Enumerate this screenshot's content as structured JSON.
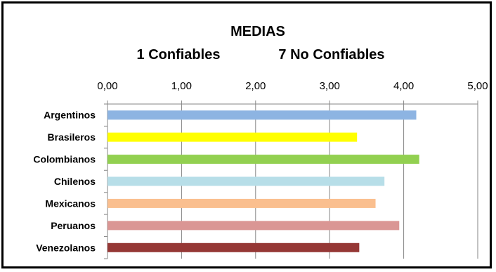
{
  "chart_data": {
    "type": "bar",
    "orientation": "horizontal",
    "title": "MEDIAS",
    "subtitle_left": "1 Confiables",
    "subtitle_right": "7 No Confiables",
    "xlim": [
      0,
      5
    ],
    "xticks": [
      "0,00",
      "1,00",
      "2,00",
      "3,00",
      "4,00",
      "5,00"
    ],
    "xtick_values": [
      0,
      1,
      2,
      3,
      4,
      5
    ],
    "xaxis_position": "top",
    "grid": true,
    "legend": "none",
    "categories": [
      "Argentinos",
      "Brasileros",
      "Colombianos",
      "Chilenos",
      "Mexicanos",
      "Peruanos",
      "Venezolanos"
    ],
    "values": [
      4.17,
      3.37,
      4.21,
      3.74,
      3.62,
      3.94,
      3.4
    ],
    "colors": [
      "#8db4e2",
      "#ffff00",
      "#92d050",
      "#b7dee8",
      "#fabf8f",
      "#da9694",
      "#953735"
    ]
  }
}
